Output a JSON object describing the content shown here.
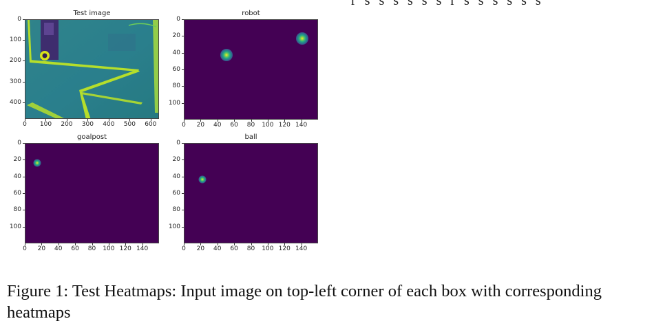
{
  "page": {
    "top_fragment": "r s s s s s s   r s s s s s s",
    "caption": "Figure 1:  Test Heatmaps:  Input image on top-left corner of each box with corresponding heatmaps"
  },
  "chart_data": [
    {
      "type": "image",
      "title": "Test image",
      "xlim": [
        0,
        640
      ],
      "ylim": [
        480,
        0
      ],
      "xticks": [
        "0",
        "100",
        "200",
        "300",
        "400",
        "500",
        "600"
      ],
      "xtick_values": [
        0,
        100,
        200,
        300,
        400,
        500,
        600
      ],
      "yticks": [
        "0",
        "100",
        "200",
        "300",
        "400"
      ],
      "ytick_values": [
        0,
        100,
        200,
        300,
        400
      ],
      "description_colormap": "viridis"
    },
    {
      "type": "heatmap",
      "title": "robot",
      "xlim": [
        0,
        160
      ],
      "ylim": [
        120,
        0
      ],
      "xticks": [
        "0",
        "20",
        "40",
        "60",
        "80",
        "100",
        "120",
        "140"
      ],
      "xtick_values": [
        0,
        20,
        40,
        60,
        80,
        100,
        120,
        140
      ],
      "yticks": [
        "0",
        "20",
        "40",
        "60",
        "80",
        "100"
      ],
      "ytick_values": [
        0,
        20,
        40,
        60,
        80,
        100
      ],
      "peaks": [
        {
          "x": 50,
          "y": 42,
          "size": "large"
        },
        {
          "x": 140,
          "y": 22,
          "size": "large"
        }
      ],
      "colormap": "viridis"
    },
    {
      "type": "heatmap",
      "title": "goalpost",
      "xlim": [
        0,
        160
      ],
      "ylim": [
        120,
        0
      ],
      "xticks": [
        "0",
        "20",
        "40",
        "60",
        "80",
        "100",
        "120",
        "140"
      ],
      "xtick_values": [
        0,
        20,
        40,
        60,
        80,
        100,
        120,
        140
      ],
      "yticks": [
        "0",
        "20",
        "40",
        "60",
        "80",
        "100"
      ],
      "ytick_values": [
        0,
        20,
        40,
        60,
        80,
        100
      ],
      "peaks": [
        {
          "x": 14,
          "y": 23,
          "size": "small"
        }
      ],
      "colormap": "viridis"
    },
    {
      "type": "heatmap",
      "title": "ball",
      "xlim": [
        0,
        160
      ],
      "ylim": [
        120,
        0
      ],
      "xticks": [
        "0",
        "20",
        "40",
        "60",
        "80",
        "100",
        "120",
        "140"
      ],
      "xtick_values": [
        0,
        20,
        40,
        60,
        80,
        100,
        120,
        140
      ],
      "yticks": [
        "0",
        "20",
        "40",
        "60",
        "80",
        "100"
      ],
      "ytick_values": [
        0,
        20,
        40,
        60,
        80,
        100
      ],
      "peaks": [
        {
          "x": 21,
          "y": 43,
          "size": "small"
        }
      ],
      "colormap": "viridis"
    }
  ]
}
